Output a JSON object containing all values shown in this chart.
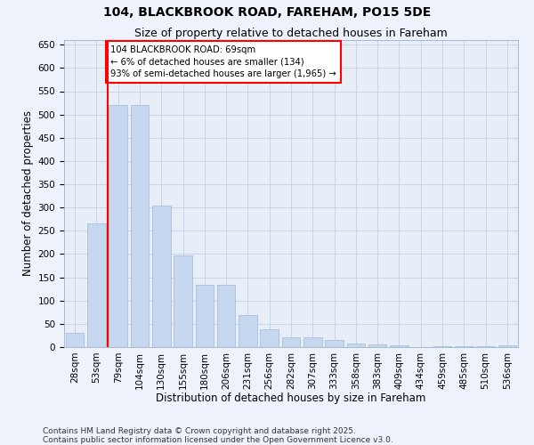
{
  "title": "104, BLACKBROOK ROAD, FAREHAM, PO15 5DE",
  "subtitle": "Size of property relative to detached houses in Fareham",
  "xlabel": "Distribution of detached houses by size in Fareham",
  "ylabel": "Number of detached properties",
  "categories": [
    "28sqm",
    "53sqm",
    "79sqm",
    "104sqm",
    "130sqm",
    "155sqm",
    "180sqm",
    "206sqm",
    "231sqm",
    "256sqm",
    "282sqm",
    "307sqm",
    "333sqm",
    "358sqm",
    "383sqm",
    "409sqm",
    "434sqm",
    "459sqm",
    "485sqm",
    "510sqm",
    "536sqm"
  ],
  "values": [
    30,
    265,
    520,
    520,
    305,
    198,
    133,
    133,
    68,
    38,
    22,
    22,
    15,
    8,
    5,
    4,
    0,
    2,
    2,
    2,
    4
  ],
  "bar_color": "#c5d8f0",
  "bar_edge_color": "#a0b8d8",
  "redline_x": 1.5,
  "annotation_text": "104 BLACKBROOK ROAD: 69sqm\n← 6% of detached houses are smaller (134)\n93% of semi-detached houses are larger (1,965) →",
  "annotation_box_color": "white",
  "annotation_box_edge_color": "red",
  "ylim": [
    0,
    660
  ],
  "yticks": [
    0,
    50,
    100,
    150,
    200,
    250,
    300,
    350,
    400,
    450,
    500,
    550,
    600,
    650
  ],
  "grid_color": "#c8d4e8",
  "bg_color": "#e8eef8",
  "fig_color": "#eef2fa",
  "footer_line1": "Contains HM Land Registry data © Crown copyright and database right 2025.",
  "footer_line2": "Contains public sector information licensed under the Open Government Licence v3.0.",
  "title_fontsize": 10,
  "subtitle_fontsize": 9,
  "axis_label_fontsize": 8.5,
  "tick_fontsize": 7.5,
  "footer_fontsize": 6.5
}
